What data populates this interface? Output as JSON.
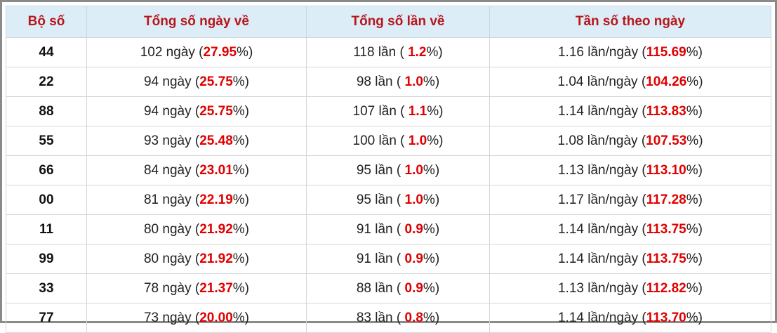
{
  "table": {
    "header": [
      "Bộ số",
      "Tổng số ngày về",
      "Tổng số lần về",
      "Tần số theo ngày"
    ],
    "rows": [
      [
        "44",
        {
          "pre": "102 ngày (",
          "hl": "27.95",
          "post": "%)"
        },
        {
          "pre": "118 lần ( ",
          "hl": "1.2",
          "post": "%)"
        },
        {
          "pre": "1.16 lần/ngày (",
          "hl": "115.69",
          "post": "%)"
        }
      ],
      [
        "22",
        {
          "pre": "94 ngày (",
          "hl": "25.75",
          "post": "%)"
        },
        {
          "pre": "98 lần ( ",
          "hl": "1.0",
          "post": "%)"
        },
        {
          "pre": "1.04 lần/ngày (",
          "hl": "104.26",
          "post": "%)"
        }
      ],
      [
        "88",
        {
          "pre": "94 ngày (",
          "hl": "25.75",
          "post": "%)"
        },
        {
          "pre": "107 lần ( ",
          "hl": "1.1",
          "post": "%)"
        },
        {
          "pre": "1.14 lần/ngày (",
          "hl": "113.83",
          "post": "%)"
        }
      ],
      [
        "55",
        {
          "pre": "93 ngày (",
          "hl": "25.48",
          "post": "%)"
        },
        {
          "pre": "100 lần ( ",
          "hl": "1.0",
          "post": "%)"
        },
        {
          "pre": "1.08 lần/ngày (",
          "hl": "107.53",
          "post": "%)"
        }
      ],
      [
        "66",
        {
          "pre": "84 ngày (",
          "hl": "23.01",
          "post": "%)"
        },
        {
          "pre": "95 lần ( ",
          "hl": "1.0",
          "post": "%)"
        },
        {
          "pre": "1.13 lần/ngày (",
          "hl": "113.10",
          "post": "%)"
        }
      ],
      [
        "00",
        {
          "pre": "81 ngày (",
          "hl": "22.19",
          "post": "%)"
        },
        {
          "pre": "95 lần ( ",
          "hl": "1.0",
          "post": "%)"
        },
        {
          "pre": "1.17 lần/ngày (",
          "hl": "117.28",
          "post": "%)"
        }
      ],
      [
        "11",
        {
          "pre": "80 ngày (",
          "hl": "21.92",
          "post": "%)"
        },
        {
          "pre": "91 lần ( ",
          "hl": "0.9",
          "post": "%)"
        },
        {
          "pre": "1.14 lần/ngày (",
          "hl": "113.75",
          "post": "%)"
        }
      ],
      [
        "99",
        {
          "pre": "80 ngày (",
          "hl": "21.92",
          "post": "%)"
        },
        {
          "pre": "91 lần ( ",
          "hl": "0.9",
          "post": "%)"
        },
        {
          "pre": "1.14 lần/ngày (",
          "hl": "113.75",
          "post": "%)"
        }
      ],
      [
        "33",
        {
          "pre": "78 ngày (",
          "hl": "21.37",
          "post": "%)"
        },
        {
          "pre": "88 lần ( ",
          "hl": "0.9",
          "post": "%)"
        },
        {
          "pre": "1.13 lần/ngày (",
          "hl": "112.82",
          "post": "%)"
        }
      ],
      [
        "77",
        {
          "pre": "73 ngày (",
          "hl": "20.00",
          "post": "%)"
        },
        {
          "pre": "83 lần ( ",
          "hl": "0.8",
          "post": "%)"
        },
        {
          "pre": "1.14 lần/ngày (",
          "hl": "113.70",
          "post": "%)"
        }
      ]
    ]
  }
}
